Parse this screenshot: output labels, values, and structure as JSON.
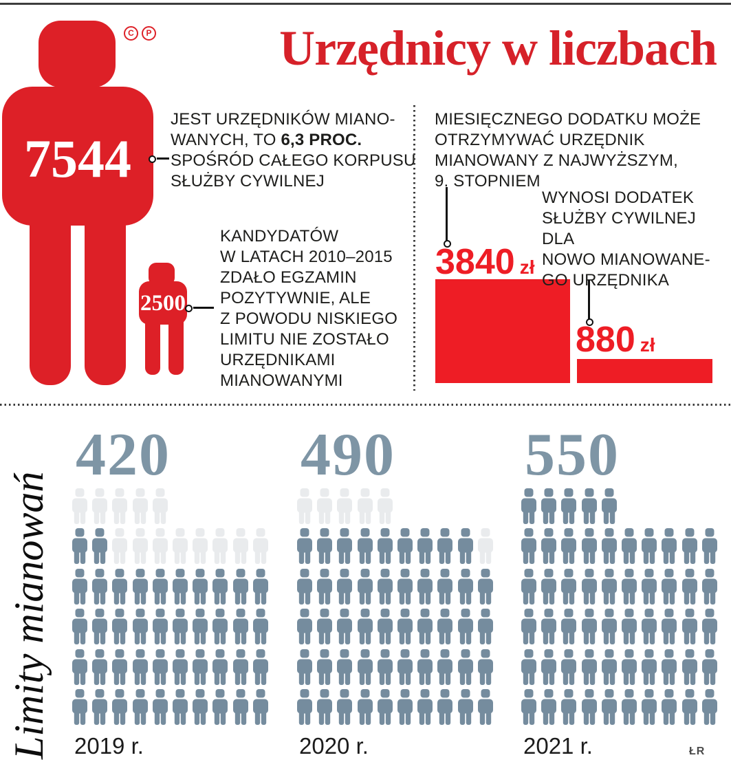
{
  "title": "Urzędnicy w liczbach",
  "logo": {
    "c": "C",
    "p": "P"
  },
  "credit": "ŁR",
  "colors": {
    "red_title": "#d62129",
    "red_figure": "#dd2027",
    "red_bar": "#ee1d25",
    "icon_dark": "#758c9e",
    "icon_light": "#e9ebed",
    "number_blue": "#7e95a5",
    "text": "#1d1d1b"
  },
  "top": {
    "big_figure": {
      "value": "7544"
    },
    "fact1": {
      "line1": "JEST URZĘDNIKÓW MIANO-",
      "line2_pre": "WANYCH, TO ",
      "line2_bold": "6,3 PROC.",
      "line3": "SPOŚRÓD CAŁEGO KORPUSU",
      "line4": "SŁUŻBY CYWILNEJ"
    },
    "small_figure": {
      "value": "2500"
    },
    "fact2": {
      "lines": [
        "KANDYDATÓW",
        "W LATACH 2010–2015",
        "ZDAŁO EGZAMIN",
        "POZYTYWNIE, ALE",
        "Z POWODU NISKIEGO",
        "LIMITU NIE ZOSTAŁO",
        "URZĘDNIKAMI",
        "MIANOWANYMI"
      ]
    },
    "fact3": {
      "lines": [
        "MIESIĘCZNEGO DODATKU MOŻE",
        "OTRZYMYWAĆ URZĘDNIK",
        "MIANOWANY Z NAJWYŻSZYM,",
        "9. STOPNIEM"
      ]
    },
    "amount1": {
      "value": "3840",
      "unit": "zł"
    },
    "fact4": {
      "lines": [
        "WYNOSI DODATEK",
        "SŁUŻBY CYWILNEJ DLA",
        "NOWO MIANOWANE-",
        "GO URZĘDNIKA"
      ]
    },
    "amount2": {
      "value": "880",
      "unit": "zł"
    }
  },
  "limits": {
    "side_label": "Limity mianowań",
    "groups": [
      {
        "number": "420",
        "year": "2019 r.",
        "rows": [
          [
            0,
            5
          ],
          [
            2,
            8
          ],
          [
            10,
            0
          ],
          [
            10,
            0
          ],
          [
            10,
            0
          ],
          [
            10,
            0
          ]
        ]
      },
      {
        "number": "490",
        "year": "2020 r.",
        "rows": [
          [
            0,
            5
          ],
          [
            9,
            1
          ],
          [
            10,
            0
          ],
          [
            10,
            0
          ],
          [
            10,
            0
          ],
          [
            10,
            0
          ]
        ]
      },
      {
        "number": "550",
        "year": "2021 r.",
        "rows": [
          [
            5,
            0
          ],
          [
            10,
            0
          ],
          [
            10,
            0
          ],
          [
            10,
            0
          ],
          [
            10,
            0
          ],
          [
            10,
            0
          ]
        ]
      }
    ]
  },
  "chart_data": [
    {
      "type": "pictogram",
      "title": "Limity mianowań",
      "categories": [
        "2019 r.",
        "2020 r.",
        "2021 r."
      ],
      "values": [
        420,
        490,
        550
      ],
      "unit_per_icon": 10,
      "icons_dark": [
        42,
        49,
        55
      ],
      "icons_light": [
        13,
        6,
        0
      ],
      "icons_total_per_group": 55,
      "note": "dark icons = appointment limit granted, light icons = remainder up to 550"
    },
    {
      "type": "bar",
      "categories": [
        "urzędnik mianowany z najwyższym, 9. stopniem",
        "nowo mianowany urzędnik"
      ],
      "values": [
        3840,
        880
      ],
      "unit": "zł",
      "labels": [
        "3840 zł",
        "880 zł"
      ],
      "ylim": [
        0,
        3840
      ]
    },
    {
      "type": "pictogram-comparison",
      "categories": [
        "urzędnicy mianowani",
        "kandydaci, którzy zdali egzamin w latach 2010–2015"
      ],
      "values": [
        7544,
        2500
      ]
    }
  ]
}
